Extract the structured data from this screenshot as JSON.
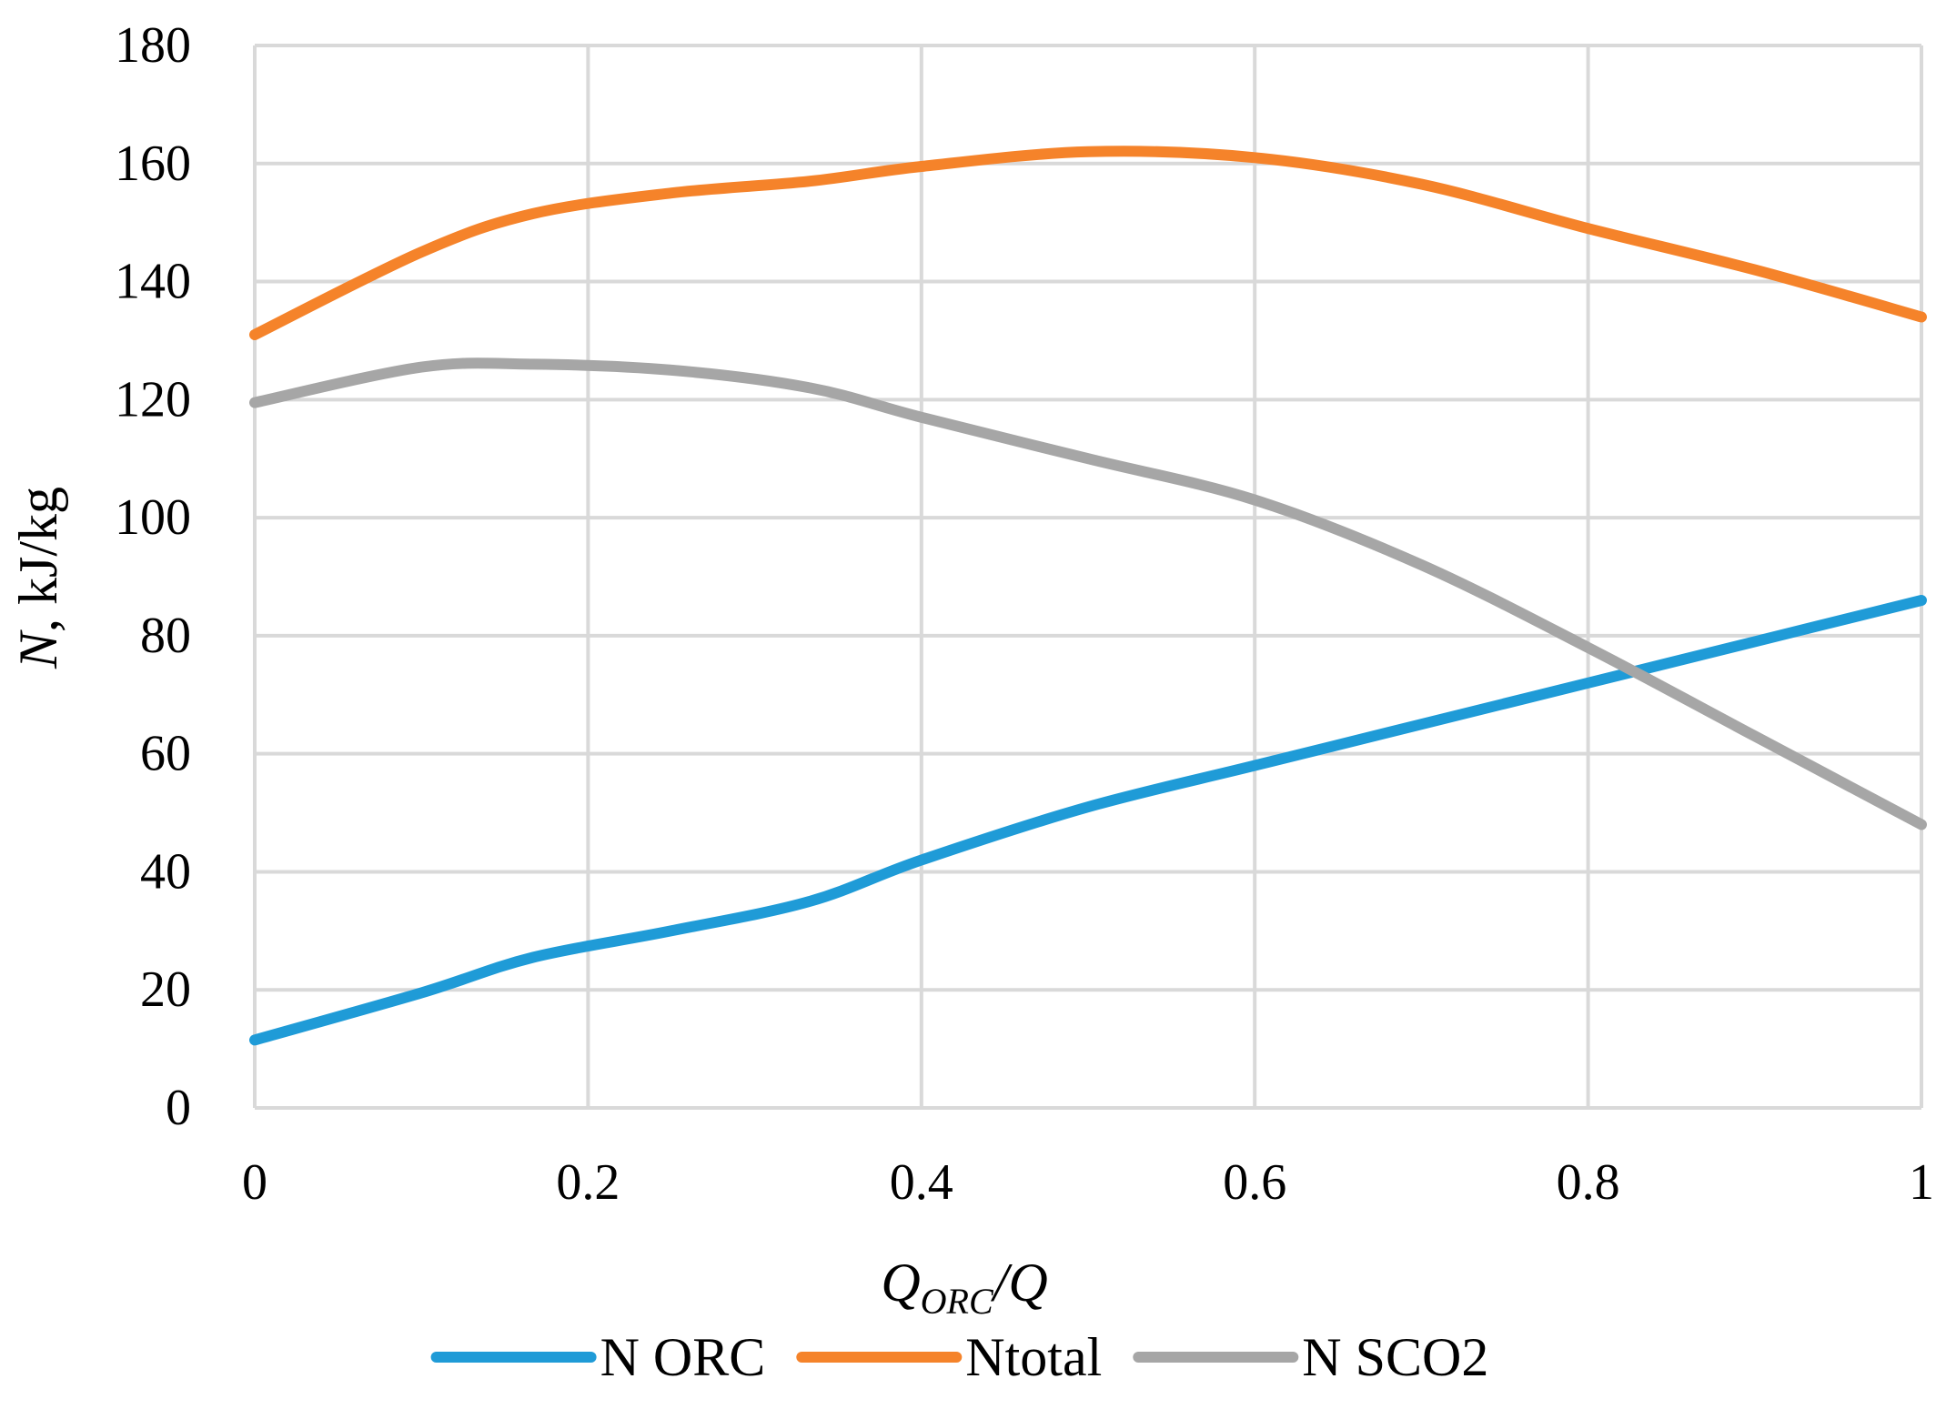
{
  "chart_data": {
    "type": "line",
    "title": "",
    "xlabel": {
      "main": "Q",
      "subscript": "ORC",
      "suffix": "/Q"
    },
    "ylabel": {
      "italic": "N",
      "rest": ", kJ/kg"
    },
    "xlim": [
      0,
      1
    ],
    "ylim": [
      0,
      180
    ],
    "x_ticks": [
      "0",
      "0.2",
      "0.4",
      "0.6",
      "0.8",
      "1"
    ],
    "y_ticks": [
      "0",
      "20",
      "40",
      "60",
      "80",
      "100",
      "120",
      "140",
      "160",
      "180"
    ],
    "grid": true,
    "legend_position": "bottom",
    "series": [
      {
        "name": "N ORC",
        "color": "#1f9bd7",
        "points": [
          [
            0,
            11.5
          ],
          [
            0.1,
            19.5
          ],
          [
            0.167,
            25.5
          ],
          [
            0.25,
            30
          ],
          [
            0.333,
            35
          ],
          [
            0.4,
            42
          ],
          [
            0.5,
            51
          ],
          [
            0.6,
            58
          ],
          [
            0.7,
            65
          ],
          [
            0.8,
            72
          ],
          [
            0.9,
            79
          ],
          [
            1.0,
            86
          ]
        ]
      },
      {
        "name": "Ntotal",
        "color": "#f5832a",
        "points": [
          [
            0,
            131
          ],
          [
            0.1,
            145
          ],
          [
            0.167,
            151.5
          ],
          [
            0.25,
            155
          ],
          [
            0.333,
            157
          ],
          [
            0.4,
            159.5
          ],
          [
            0.5,
            162
          ],
          [
            0.6,
            161
          ],
          [
            0.7,
            156.5
          ],
          [
            0.8,
            149
          ],
          [
            0.9,
            142
          ],
          [
            1.0,
            134
          ]
        ]
      },
      {
        "name": "N SCO2",
        "color": "#a6a6a6",
        "points": [
          [
            0,
            119.5
          ],
          [
            0.1,
            125.5
          ],
          [
            0.167,
            126
          ],
          [
            0.25,
            125
          ],
          [
            0.333,
            122
          ],
          [
            0.4,
            117
          ],
          [
            0.5,
            110
          ],
          [
            0.6,
            103
          ],
          [
            0.7,
            92
          ],
          [
            0.8,
            78
          ],
          [
            0.9,
            63
          ],
          [
            1.0,
            48
          ]
        ]
      }
    ]
  }
}
